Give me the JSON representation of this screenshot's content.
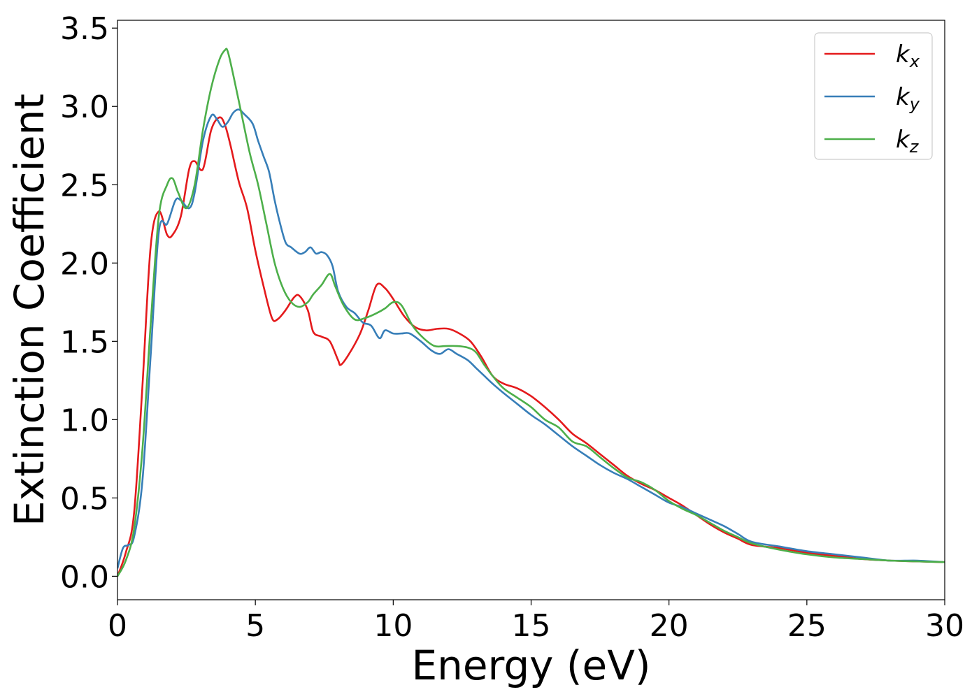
{
  "chart_data": {
    "type": "line",
    "xlabel": "Energy (eV)",
    "ylabel": "Extinction Coefficient",
    "xlim": [
      0,
      30
    ],
    "ylim": [
      -0.15,
      3.55
    ],
    "xticks": [
      0,
      5,
      10,
      15,
      20,
      25,
      30
    ],
    "yticks": [
      0.0,
      0.5,
      1.0,
      1.5,
      2.0,
      2.5,
      3.0,
      3.5
    ],
    "xtick_labels": [
      "0",
      "5",
      "10",
      "15",
      "20",
      "25",
      "30"
    ],
    "ytick_labels": [
      "0.0",
      "0.5",
      "1.0",
      "1.5",
      "2.0",
      "2.5",
      "3.0",
      "3.5"
    ],
    "grid": false,
    "legend_position": "top-right",
    "series": [
      {
        "name": "k_x",
        "legend_base": "k",
        "legend_sub": "x",
        "color": "#e41a1c",
        "x": [
          0,
          0.3,
          0.6,
          0.9,
          1.2,
          1.5,
          1.8,
          2.0,
          2.3,
          2.6,
          2.8,
          3.1,
          3.4,
          3.7,
          3.9,
          4.1,
          4.4,
          4.7,
          5.0,
          5.3,
          5.6,
          5.8,
          6.1,
          6.4,
          6.6,
          6.9,
          7.1,
          7.4,
          7.7,
          8.0,
          8.1,
          8.4,
          8.8,
          9.1,
          9.4,
          9.7,
          10.0,
          10.4,
          10.8,
          11.2,
          11.6,
          12.0,
          12.4,
          12.8,
          13.2,
          13.6,
          14.0,
          14.5,
          15.0,
          15.5,
          16.0,
          16.5,
          17.0,
          17.5,
          18.0,
          18.5,
          19.0,
          19.5,
          20.0,
          20.5,
          21.0,
          21.5,
          22.0,
          22.5,
          23.0,
          24.0,
          25.0,
          26.0,
          27.0,
          28.0,
          29.0,
          30.0
        ],
        "y": [
          0.0,
          0.15,
          0.4,
          1.2,
          2.1,
          2.33,
          2.18,
          2.18,
          2.3,
          2.6,
          2.65,
          2.6,
          2.85,
          2.93,
          2.88,
          2.75,
          2.52,
          2.35,
          2.08,
          1.85,
          1.65,
          1.64,
          1.7,
          1.78,
          1.79,
          1.7,
          1.56,
          1.53,
          1.5,
          1.38,
          1.35,
          1.42,
          1.55,
          1.7,
          1.86,
          1.84,
          1.77,
          1.66,
          1.59,
          1.57,
          1.58,
          1.58,
          1.55,
          1.5,
          1.4,
          1.28,
          1.23,
          1.2,
          1.15,
          1.08,
          1.0,
          0.91,
          0.85,
          0.78,
          0.71,
          0.64,
          0.59,
          0.55,
          0.5,
          0.45,
          0.39,
          0.33,
          0.28,
          0.24,
          0.2,
          0.18,
          0.15,
          0.13,
          0.11,
          0.1,
          0.095,
          0.09
        ]
      },
      {
        "name": "k_y",
        "legend_base": "k",
        "legend_sub": "y",
        "color": "#377eb8",
        "x": [
          0,
          0.2,
          0.4,
          0.6,
          0.9,
          1.2,
          1.5,
          1.8,
          2.1,
          2.3,
          2.6,
          2.8,
          3.1,
          3.4,
          3.6,
          3.8,
          4.0,
          4.2,
          4.4,
          4.6,
          4.9,
          5.1,
          5.3,
          5.5,
          5.7,
          5.9,
          6.1,
          6.3,
          6.6,
          6.8,
          7.0,
          7.2,
          7.4,
          7.6,
          7.8,
          8.0,
          8.3,
          8.6,
          8.9,
          9.2,
          9.5,
          9.7,
          10.0,
          10.3,
          10.6,
          11.0,
          11.4,
          11.7,
          12.0,
          12.3,
          12.7,
          13.0,
          13.3,
          13.6,
          14.0,
          14.5,
          15.0,
          15.5,
          16.0,
          16.5,
          17.0,
          17.5,
          18.0,
          18.5,
          19.0,
          19.5,
          20.0,
          20.5,
          21.0,
          21.5,
          22.0,
          22.5,
          23.0,
          24.0,
          25.0,
          26.0,
          27.0,
          28.0,
          29.0,
          30.0
        ],
        "y": [
          0.05,
          0.18,
          0.2,
          0.25,
          0.6,
          1.4,
          2.2,
          2.25,
          2.4,
          2.4,
          2.35,
          2.45,
          2.78,
          2.94,
          2.92,
          2.87,
          2.9,
          2.96,
          2.98,
          2.95,
          2.89,
          2.78,
          2.68,
          2.58,
          2.4,
          2.25,
          2.13,
          2.1,
          2.06,
          2.07,
          2.1,
          2.06,
          2.07,
          2.05,
          1.98,
          1.82,
          1.72,
          1.68,
          1.62,
          1.6,
          1.52,
          1.57,
          1.55,
          1.55,
          1.55,
          1.5,
          1.44,
          1.42,
          1.45,
          1.42,
          1.38,
          1.33,
          1.28,
          1.23,
          1.17,
          1.1,
          1.03,
          0.97,
          0.9,
          0.83,
          0.77,
          0.71,
          0.66,
          0.62,
          0.57,
          0.52,
          0.47,
          0.44,
          0.4,
          0.36,
          0.32,
          0.27,
          0.22,
          0.19,
          0.16,
          0.14,
          0.12,
          0.1,
          0.1,
          0.09
        ]
      },
      {
        "name": "k_z",
        "legend_base": "k",
        "legend_sub": "z",
        "color": "#4daf4a",
        "x": [
          0,
          0.3,
          0.6,
          0.9,
          1.2,
          1.5,
          1.8,
          2.0,
          2.2,
          2.5,
          2.8,
          3.1,
          3.4,
          3.7,
          3.9,
          4.0,
          4.2,
          4.5,
          4.8,
          5.1,
          5.4,
          5.7,
          6.0,
          6.3,
          6.6,
          6.9,
          7.1,
          7.4,
          7.7,
          7.9,
          8.2,
          8.6,
          9.0,
          9.4,
          9.7,
          10.0,
          10.3,
          10.7,
          11.1,
          11.5,
          11.9,
          12.3,
          12.7,
          13.0,
          13.3,
          13.6,
          14.0,
          14.5,
          15.0,
          15.5,
          16.0,
          16.5,
          17.0,
          17.5,
          18.0,
          18.5,
          19.0,
          19.5,
          20.0,
          20.5,
          21.0,
          21.5,
          22.0,
          22.5,
          23.0,
          24.0,
          25.0,
          26.0,
          27.0,
          28.0,
          29.0,
          30.0
        ],
        "y": [
          0.0,
          0.1,
          0.3,
          0.8,
          1.6,
          2.3,
          2.5,
          2.54,
          2.45,
          2.35,
          2.5,
          2.85,
          3.12,
          3.3,
          3.36,
          3.35,
          3.2,
          2.95,
          2.7,
          2.5,
          2.25,
          2.0,
          1.84,
          1.75,
          1.72,
          1.75,
          1.8,
          1.86,
          1.93,
          1.85,
          1.73,
          1.64,
          1.65,
          1.68,
          1.71,
          1.75,
          1.73,
          1.6,
          1.52,
          1.47,
          1.47,
          1.47,
          1.46,
          1.43,
          1.35,
          1.28,
          1.2,
          1.14,
          1.08,
          1.0,
          0.95,
          0.86,
          0.83,
          0.76,
          0.69,
          0.63,
          0.6,
          0.55,
          0.48,
          0.43,
          0.39,
          0.34,
          0.29,
          0.25,
          0.21,
          0.17,
          0.14,
          0.12,
          0.11,
          0.1,
          0.095,
          0.09
        ]
      }
    ]
  }
}
